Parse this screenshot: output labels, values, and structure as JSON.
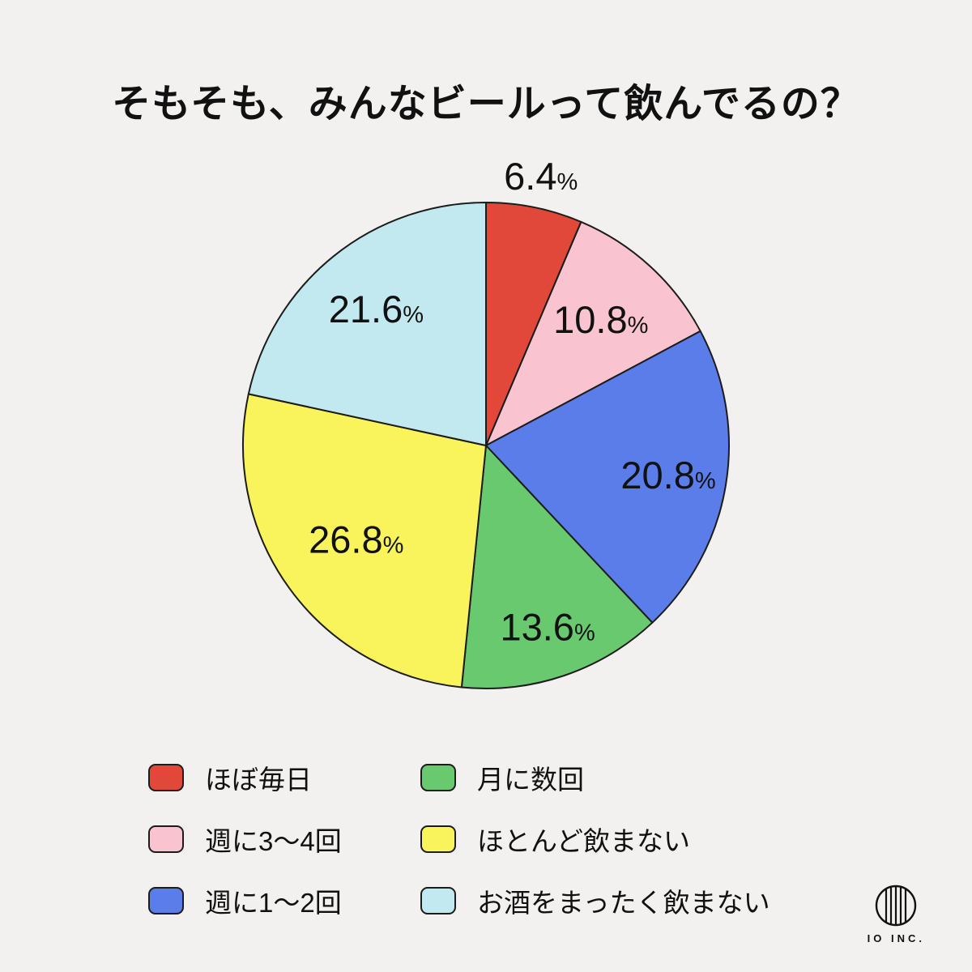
{
  "title": "そもそも、みんなビールって飲んでるの？",
  "chart_data": {
    "type": "pie",
    "title": "そもそも、みんなビールって飲んでるの？",
    "start_angle_deg": 0,
    "direction": "clockwise",
    "total": 100,
    "stroke_color": "#1c1c1c",
    "legend_position": "bottom",
    "legend_columns": 2,
    "slices": [
      {
        "label": "ほぼ毎日",
        "value": 6.4,
        "unit": "%",
        "color": "#e2483a"
      },
      {
        "label": "週に3〜4回",
        "value": 10.8,
        "unit": "%",
        "color": "#f9c4cf"
      },
      {
        "label": "週に1〜2回",
        "value": 20.8,
        "unit": "%",
        "color": "#5b7de9"
      },
      {
        "label": "月に数回",
        "value": 13.6,
        "unit": "%",
        "color": "#69c96f"
      },
      {
        "label": "ほとんど飲まない",
        "value": 26.8,
        "unit": "%",
        "color": "#f9f35c"
      },
      {
        "label": "お酒をまったく飲まない",
        "value": 21.6,
        "unit": "%",
        "color": "#c2e9f0"
      }
    ]
  },
  "footer": {
    "brand": "IO INC."
  }
}
